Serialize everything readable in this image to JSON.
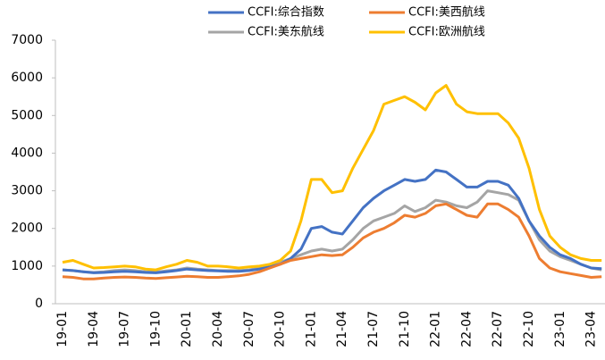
{
  "chart_data": {
    "type": "line",
    "categories": [
      "19-01",
      null,
      null,
      "19-04",
      null,
      null,
      "19-07",
      null,
      null,
      "19-10",
      null,
      null,
      "20-01",
      null,
      null,
      "20-04",
      null,
      null,
      "20-07",
      null,
      null,
      "20-10",
      null,
      null,
      "21-01",
      null,
      null,
      "21-04",
      null,
      null,
      "21-07",
      null,
      null,
      "21-10",
      null,
      null,
      "22-01",
      null,
      null,
      "22-04",
      null,
      null,
      "22-07",
      null,
      null,
      "22-10",
      null,
      null,
      "23-01",
      null,
      null,
      "23-04",
      null
    ],
    "series": [
      {
        "name": "CCFI:综合指数",
        "color": "#4472c4",
        "values": [
          900,
          880,
          850,
          820,
          830,
          850,
          860,
          850,
          830,
          820,
          850,
          880,
          920,
          900,
          880,
          870,
          860,
          860,
          880,
          920,
          980,
          1050,
          1200,
          1450,
          2000,
          2050,
          1900,
          1850,
          2200,
          2550,
          2800,
          3000,
          3150,
          3300,
          3250,
          3300,
          3550,
          3500,
          3300,
          3100,
          3100,
          3250,
          3250,
          3150,
          2800,
          2200,
          1800,
          1500,
          1300,
          1200,
          1050,
          950,
          930
        ]
      },
      {
        "name": "CCFI:美西航线",
        "color": "#ed7d31",
        "values": [
          720,
          700,
          660,
          660,
          680,
          700,
          710,
          700,
          680,
          670,
          690,
          710,
          730,
          720,
          700,
          700,
          720,
          740,
          780,
          850,
          950,
          1050,
          1150,
          1200,
          1250,
          1300,
          1280,
          1300,
          1500,
          1750,
          1900,
          2000,
          2150,
          2350,
          2300,
          2400,
          2600,
          2650,
          2500,
          2350,
          2300,
          2650,
          2650,
          2500,
          2300,
          1800,
          1200,
          950,
          850,
          800,
          750,
          700,
          720
        ]
      },
      {
        "name": "CCFI:美东航线",
        "color": "#a5a5a5",
        "values": [
          900,
          880,
          850,
          830,
          850,
          880,
          900,
          880,
          850,
          840,
          870,
          900,
          950,
          920,
          900,
          880,
          880,
          880,
          900,
          950,
          1000,
          1100,
          1200,
          1300,
          1400,
          1450,
          1400,
          1450,
          1700,
          2000,
          2200,
          2300,
          2400,
          2600,
          2450,
          2550,
          2750,
          2700,
          2600,
          2550,
          2700,
          3000,
          2950,
          2900,
          2750,
          2200,
          1700,
          1400,
          1250,
          1150,
          1050,
          950,
          900
        ]
      },
      {
        "name": "CCFI:欧洲航线",
        "color": "#ffc000",
        "values": [
          1100,
          1150,
          1050,
          950,
          960,
          980,
          1000,
          980,
          920,
          900,
          980,
          1050,
          1150,
          1100,
          1000,
          1000,
          980,
          950,
          980,
          1000,
          1050,
          1150,
          1400,
          2200,
          3300,
          3300,
          2950,
          3000,
          3600,
          4100,
          4600,
          5300,
          5400,
          5500,
          5350,
          5150,
          5600,
          5800,
          5300,
          5100,
          5050,
          5050,
          5050,
          4800,
          4400,
          3600,
          2500,
          1800,
          1500,
          1300,
          1200,
          1150,
          1150
        ]
      }
    ],
    "ylim": [
      0,
      7000
    ],
    "yticks": [
      0,
      1000,
      2000,
      3000,
      4000,
      5000,
      6000,
      7000
    ],
    "legend": "top"
  }
}
